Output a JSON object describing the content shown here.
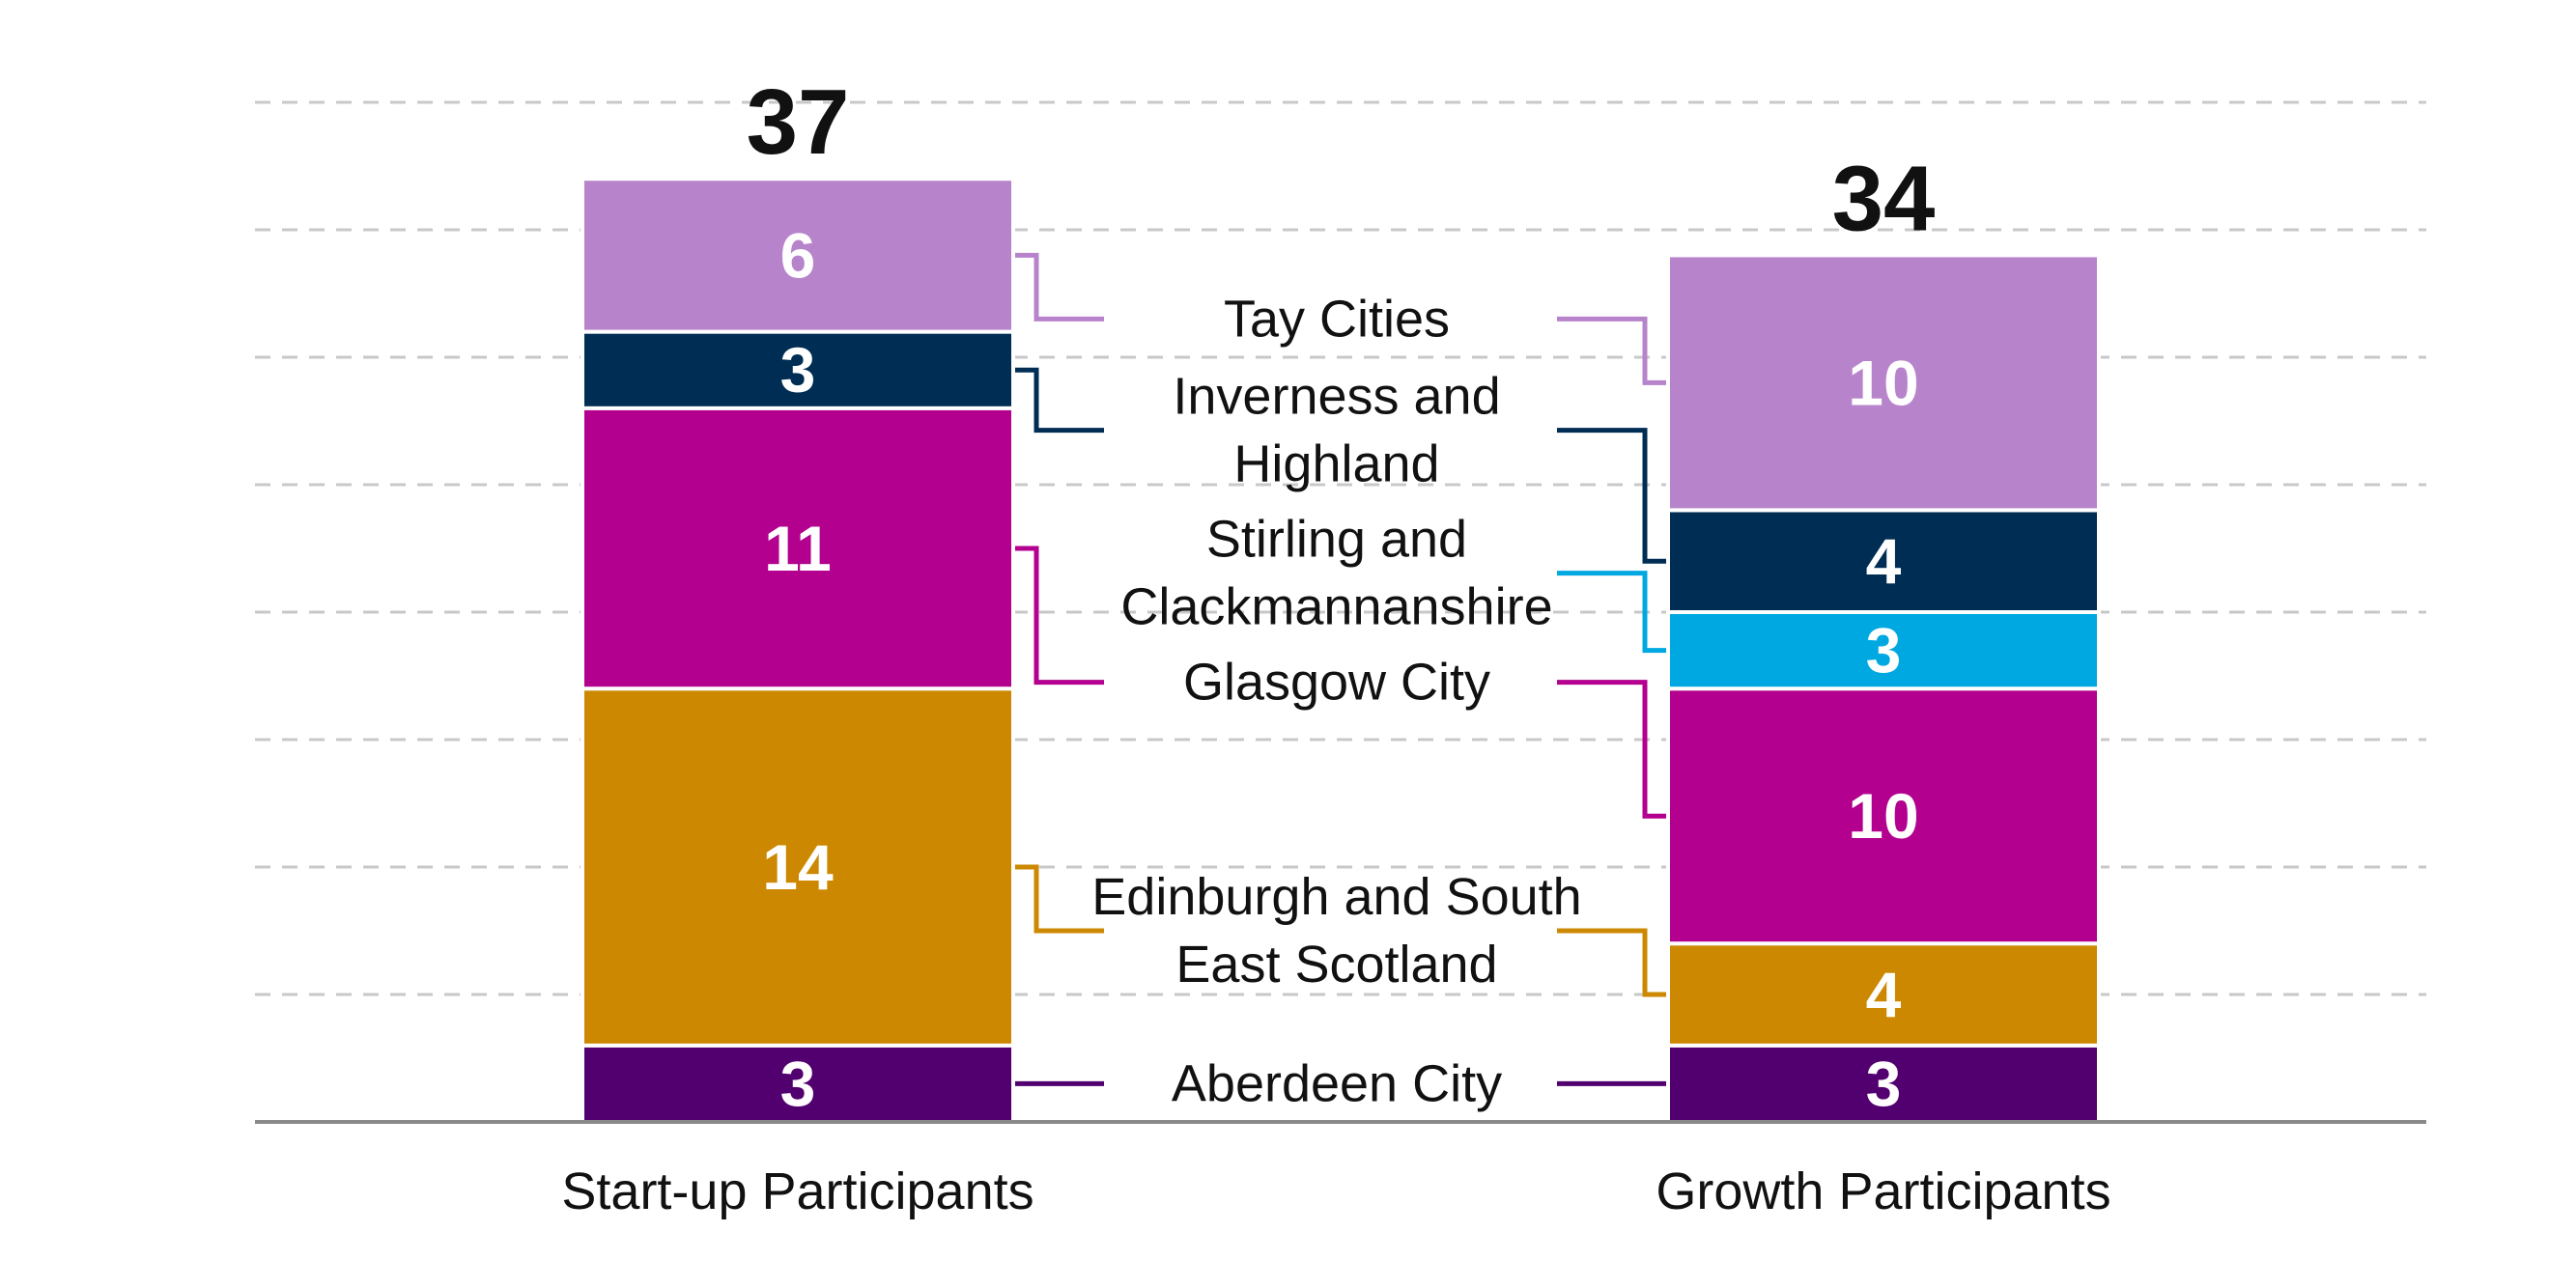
{
  "chart_data": {
    "type": "bar",
    "stacked": true,
    "categories": [
      "Start-up Participants",
      "Growth Participants"
    ],
    "totals": [
      "37",
      "34"
    ],
    "ylim": [
      0,
      40
    ],
    "grid": true,
    "series": [
      {
        "name": "Aberdeen City",
        "label_lines": [
          "Aberdeen City"
        ],
        "color": "#52006f",
        "values": [
          3,
          3
        ]
      },
      {
        "name": "Edinburgh and South East Scotland",
        "label_lines": [
          "Edinburgh and South",
          "East Scotland"
        ],
        "color": "#cc8800",
        "values": [
          14,
          4
        ]
      },
      {
        "name": "Glasgow City",
        "label_lines": [
          "Glasgow City"
        ],
        "color": "#b3008e",
        "values": [
          11,
          10
        ]
      },
      {
        "name": "Stirling and Clackmannanshire",
        "label_lines": [
          "Stirling and",
          "Clackmannanshire"
        ],
        "color": "#00a8e1",
        "values": [
          0,
          3
        ]
      },
      {
        "name": "Inverness and Highland",
        "label_lines": [
          "Inverness and",
          "Highland"
        ],
        "color": "#002d54",
        "values": [
          3,
          4
        ]
      },
      {
        "name": "Tay Cities",
        "label_lines": [
          "Tay Cities"
        ],
        "color": "#b784cb",
        "values": [
          6,
          10
        ]
      }
    ]
  }
}
